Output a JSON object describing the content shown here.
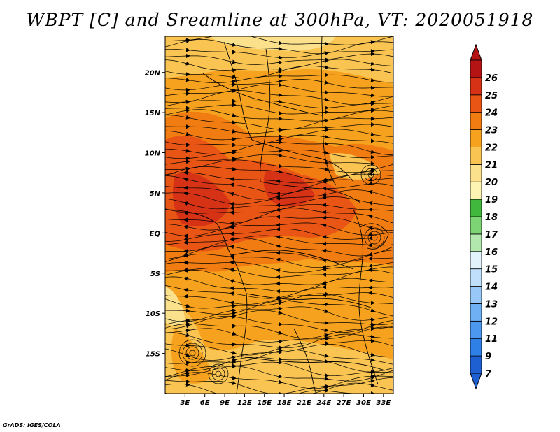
{
  "title": "WBPT [C] and Sreamline at 300hPa, VT: 2020051918",
  "credit": "GrADS: IGES/COLA",
  "map": {
    "lat_labels": [
      "20N",
      "15N",
      "10N",
      "5N",
      "EQ",
      "5S",
      "10S",
      "15S"
    ],
    "lat_values": [
      20,
      15,
      10,
      5,
      0,
      -5,
      -10,
      -15
    ],
    "lon_labels": [
      "3E",
      "6E",
      "9E",
      "12E",
      "15E",
      "18E",
      "21E",
      "24E",
      "27E",
      "30E",
      "33E"
    ],
    "lon_values": [
      3,
      6,
      9,
      12,
      15,
      18,
      21,
      24,
      27,
      30,
      33
    ],
    "lon_range": [
      0,
      34.5
    ],
    "lat_range": [
      -20,
      24.5
    ]
  },
  "colorbar": {
    "labels": [
      "7",
      "9",
      "11",
      "12",
      "13",
      "14",
      "15",
      "16",
      "17",
      "18",
      "19",
      "20",
      "21",
      "22",
      "23",
      "24",
      "25",
      "26"
    ],
    "colors": [
      "#1e5fd2",
      "#2e7fe6",
      "#4c98ef",
      "#6fb0f5",
      "#98c8f8",
      "#bfdffb",
      "#e2f3fb",
      "#b2e7ad",
      "#7dd474",
      "#3fb83d",
      "#fdf4b4",
      "#fce18c",
      "#f9c452",
      "#f6a21f",
      "#f17d12",
      "#e85514",
      "#d63216",
      "#b51414"
    ]
  },
  "field_colors": {
    "c20": "#fce18c",
    "c21": "#f9c452",
    "c22": "#f6a21f",
    "c23": "#f17d12",
    "c24": "#e85514",
    "c25": "#d63216"
  }
}
